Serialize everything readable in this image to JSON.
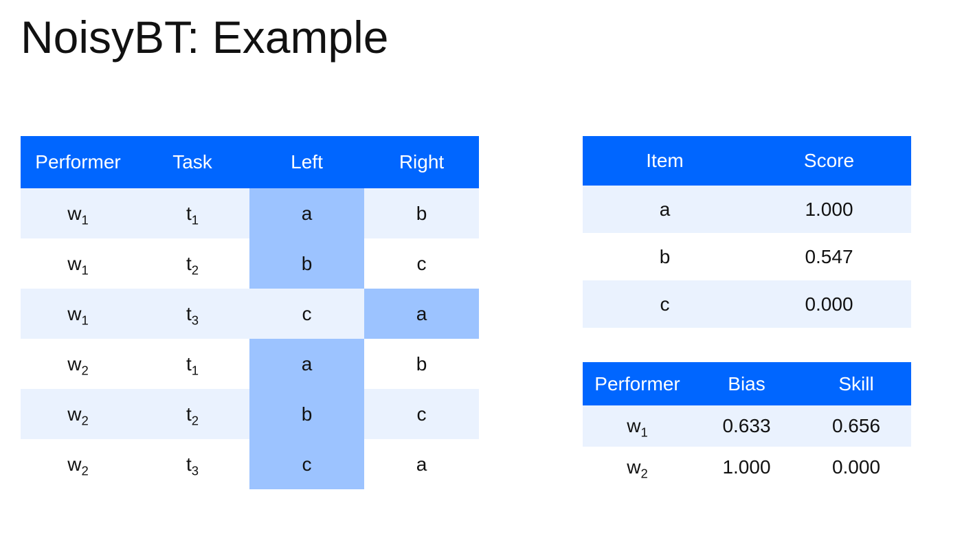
{
  "title": "NoisyBT: Example",
  "colors": {
    "header": "#0066ff",
    "stripe": "#eaf2fe",
    "highlight": "#9cc3ff"
  },
  "responses": {
    "headers": [
      "Performer",
      "Task",
      "Left",
      "Right"
    ],
    "rows": [
      {
        "performer": "w",
        "performer_sub": "1",
        "task": "t",
        "task_sub": "1",
        "left": "a",
        "right": "b",
        "winner": "left"
      },
      {
        "performer": "w",
        "performer_sub": "1",
        "task": "t",
        "task_sub": "2",
        "left": "b",
        "right": "c",
        "winner": "left"
      },
      {
        "performer": "w",
        "performer_sub": "1",
        "task": "t",
        "task_sub": "3",
        "left": "c",
        "right": "a",
        "winner": "right"
      },
      {
        "performer": "w",
        "performer_sub": "2",
        "task": "t",
        "task_sub": "1",
        "left": "a",
        "right": "b",
        "winner": "left"
      },
      {
        "performer": "w",
        "performer_sub": "2",
        "task": "t",
        "task_sub": "2",
        "left": "b",
        "right": "c",
        "winner": "left"
      },
      {
        "performer": "w",
        "performer_sub": "2",
        "task": "t",
        "task_sub": "3",
        "left": "c",
        "right": "a",
        "winner": "left"
      }
    ]
  },
  "scores": {
    "headers": [
      "Item",
      "Score"
    ],
    "rows": [
      {
        "item": "a",
        "score": "1.000"
      },
      {
        "item": "b",
        "score": "0.547"
      },
      {
        "item": "c",
        "score": "0.000"
      }
    ]
  },
  "performers": {
    "headers": [
      "Performer",
      "Bias",
      "Skill"
    ],
    "rows": [
      {
        "performer": "w",
        "performer_sub": "1",
        "bias": "0.633",
        "skill": "0.656"
      },
      {
        "performer": "w",
        "performer_sub": "2",
        "bias": "1.000",
        "skill": "0.000"
      }
    ]
  }
}
